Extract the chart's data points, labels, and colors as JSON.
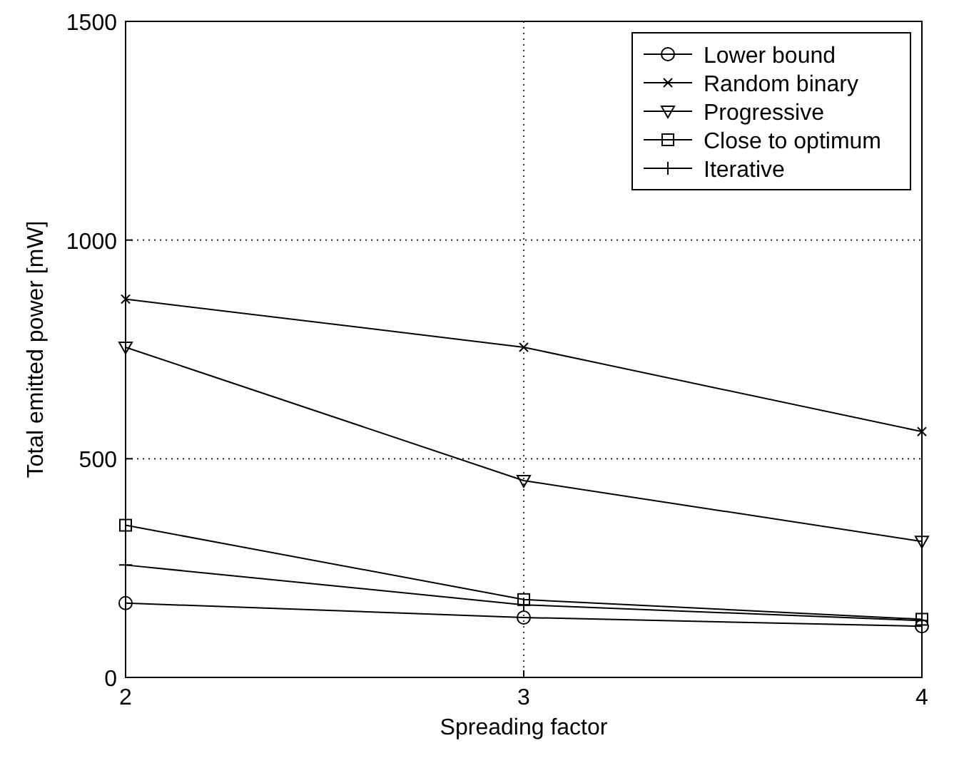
{
  "chart_data": {
    "type": "line",
    "xlabel": "Spreading factor",
    "ylabel": "Total emitted power [mW]",
    "x": [
      2,
      3,
      4
    ],
    "xlim": [
      2,
      4
    ],
    "xticks": [
      2,
      3,
      4
    ],
    "ylim": [
      0,
      1500
    ],
    "yticks": [
      0,
      500,
      1000,
      1500
    ],
    "grid": true,
    "legend": "top right",
    "line_style": "solid",
    "series": [
      {
        "name": "Lower bound",
        "color": "#000000",
        "marker": "circle",
        "values": [
          170,
          137,
          117
        ]
      },
      {
        "name": "Random binary",
        "color": "#000000",
        "marker": "cross",
        "values": [
          865,
          755,
          562
        ]
      },
      {
        "name": "Progressive",
        "color": "#000000",
        "marker": "triangle",
        "values": [
          755,
          450,
          311
        ]
      },
      {
        "name": "Close to optimum",
        "color": "#000000",
        "marker": "square",
        "values": [
          348,
          178,
          133
        ]
      },
      {
        "name": "Iterative",
        "color": "#000000",
        "marker": "plus",
        "values": [
          257,
          166,
          130
        ]
      }
    ]
  }
}
